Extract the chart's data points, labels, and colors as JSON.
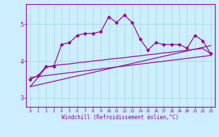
{
  "xlabel": "Windchill (Refroidissement éolien,°C)",
  "background_color": "#cceeff",
  "grid_color": "#aadddd",
  "line_color": "#990099",
  "x_ticks": [
    0,
    1,
    2,
    3,
    4,
    5,
    6,
    7,
    8,
    9,
    10,
    11,
    12,
    13,
    14,
    15,
    16,
    17,
    18,
    19,
    20,
    21,
    22,
    23
  ],
  "ylim": [
    2.75,
    5.55
  ],
  "xlim": [
    -0.5,
    23.5
  ],
  "series1_x": [
    0,
    1,
    2,
    3,
    4,
    5,
    6,
    7,
    8,
    9,
    10,
    11,
    12,
    13,
    14,
    15,
    16,
    17,
    18,
    19,
    20,
    21,
    22,
    23
  ],
  "series1_y": [
    3.5,
    3.6,
    3.85,
    3.85,
    4.45,
    4.5,
    4.7,
    4.75,
    4.75,
    4.8,
    5.2,
    5.05,
    5.25,
    5.05,
    4.6,
    4.3,
    4.5,
    4.45,
    4.45,
    4.45,
    4.35,
    4.7,
    4.55,
    4.2
  ],
  "series2_x": [
    0,
    1,
    2,
    3,
    4,
    5,
    6,
    7,
    8,
    9,
    10,
    11,
    12,
    13,
    14,
    15,
    16,
    17,
    18,
    19,
    20,
    21,
    22,
    23
  ],
  "series2_y": [
    3.3,
    3.55,
    3.82,
    3.88,
    3.9,
    3.92,
    3.95,
    3.97,
    4.0,
    4.02,
    4.05,
    4.07,
    4.09,
    4.12,
    4.14,
    4.17,
    4.19,
    4.22,
    4.24,
    4.27,
    4.29,
    4.32,
    4.34,
    4.2
  ],
  "series3_x": [
    0,
    23
  ],
  "series3_y": [
    3.3,
    4.42
  ],
  "series4_x": [
    0,
    23
  ],
  "series4_y": [
    3.55,
    4.15
  ],
  "yticks": [
    3,
    4,
    5
  ]
}
